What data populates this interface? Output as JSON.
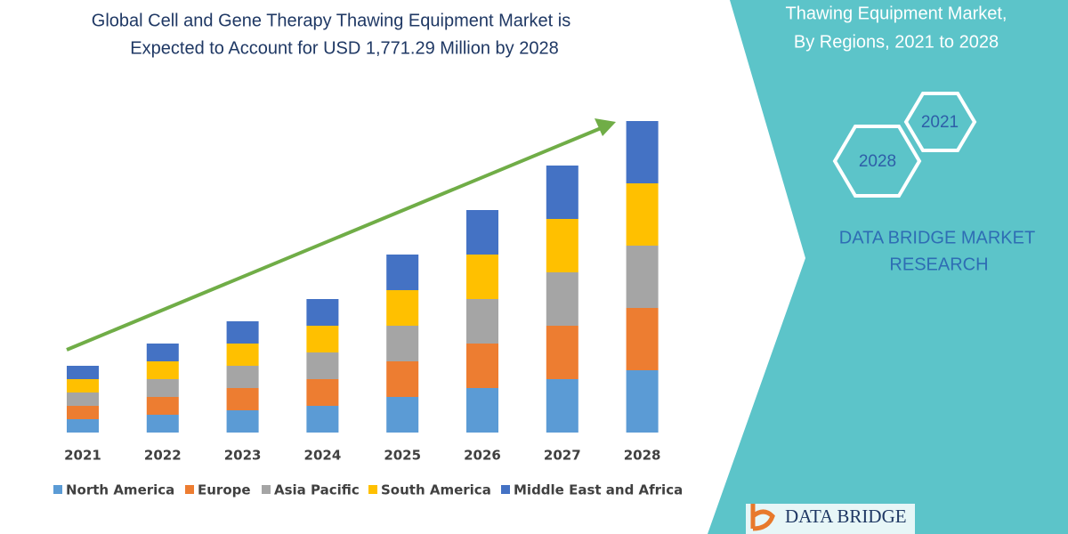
{
  "chart_data": {
    "type": "stacked-bar",
    "title": [
      "Global Cell and Gene Therapy Thawing Equipment Market is",
      "Expected to Account for USD 1,771.29 Million by 2028"
    ],
    "categories": [
      "2021",
      "2022",
      "2023",
      "2024",
      "2025",
      "2026",
      "2027",
      "2028"
    ],
    "series": [
      {
        "name": "North America",
        "color": "#5b9bd5",
        "values": [
          15,
          20,
          25,
          30,
          40,
          50,
          60,
          70
        ]
      },
      {
        "name": "Europe",
        "color": "#ed7d31",
        "values": [
          15,
          20,
          25,
          30,
          40,
          50,
          60,
          70
        ]
      },
      {
        "name": "Asia Pacific",
        "color": "#a5a5a5",
        "values": [
          15,
          20,
          25,
          30,
          40,
          50,
          60,
          70
        ]
      },
      {
        "name": "South America",
        "color": "#ffc000",
        "values": [
          15,
          20,
          25,
          30,
          40,
          50,
          60,
          70
        ]
      },
      {
        "name": "Middle East and Africa",
        "color": "#4472c4",
        "values": [
          15,
          20,
          25,
          30,
          40,
          50,
          60,
          70
        ]
      }
    ],
    "ylim": [
      0,
      360
    ]
  },
  "panel": {
    "heading": [
      "Thawing Equipment Market,",
      "By Regions,  2021 to 2028"
    ],
    "hexagons": [
      "2021",
      "2028"
    ],
    "brand": [
      "DATA BRIDGE MARKET",
      "RESEARCH"
    ],
    "logo": "DATA BRIDGE"
  }
}
